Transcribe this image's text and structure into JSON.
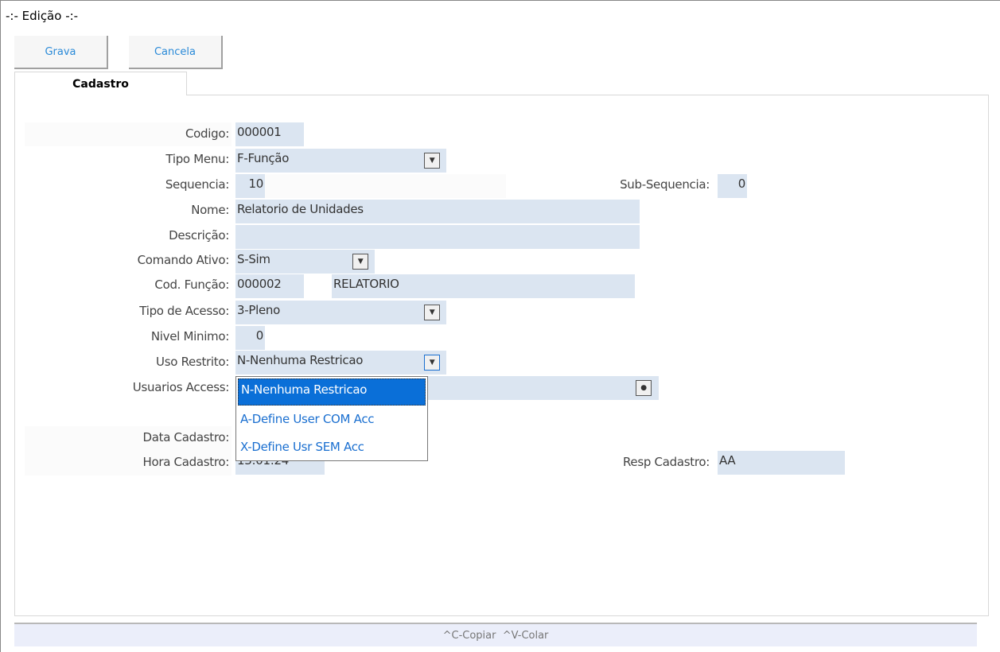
{
  "window": {
    "title": "-:- Edição -:-"
  },
  "toolbar": {
    "save_label": "Grava",
    "cancel_label": "Cancela"
  },
  "tabs": [
    {
      "label": "Cadastro"
    }
  ],
  "form": {
    "codigo": {
      "label": "Codigo:",
      "value": "000001"
    },
    "tipo_menu": {
      "label": "Tipo Menu:",
      "value": "F-Função"
    },
    "sequencia": {
      "label": "Sequencia:",
      "value": "10"
    },
    "sub_sequencia": {
      "label": "Sub-Sequencia:",
      "value": "0"
    },
    "nome": {
      "label": "Nome:",
      "value": "Relatorio de Unidades"
    },
    "descricao": {
      "label": "Descrição:",
      "value": ""
    },
    "comando_ativo": {
      "label": "Comando Ativo:",
      "value": "S-Sim"
    },
    "cod_funcao": {
      "label": "Cod. Função:",
      "value": "000002",
      "desc": "RELATORIO"
    },
    "tipo_acesso": {
      "label": "Tipo de Acesso:",
      "value": "3-Pleno"
    },
    "nivel_minimo": {
      "label": "Nivel Minimo:",
      "value": "0"
    },
    "uso_restrito": {
      "label": "Uso Restrito:",
      "value": "N-Nenhuma Restricao",
      "options": [
        "N-Nenhuma Restricao",
        "A-Define User COM Acc",
        "X-Define Usr SEM Acc"
      ]
    },
    "usuarios_access": {
      "label": "Usuarios Access:",
      "value": ""
    },
    "data_cadastro": {
      "label": "Data Cadastro:",
      "value": ""
    },
    "hora_cadastro": {
      "label": "Hora Cadastro:",
      "value": "13:01:24"
    },
    "resp_cadastro": {
      "label": "Resp Cadastro:",
      "value": "AA"
    }
  },
  "status_bar": {
    "text": "^C-Copiar  ^V-Colar"
  },
  "colors": {
    "field_bg": "#dbe5f1",
    "selected": "#0a6fd8",
    "link": "#2a8ad8"
  }
}
